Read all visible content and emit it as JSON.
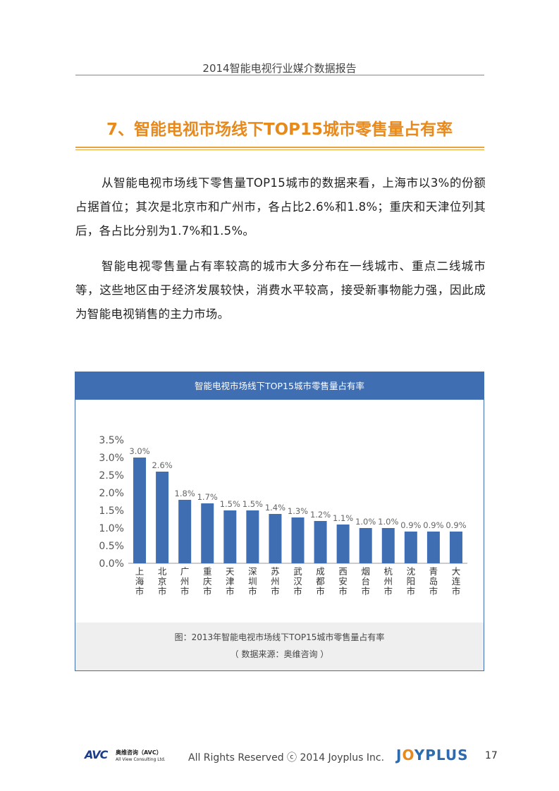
{
  "header": {
    "title": "2014智能电视行业媒介数据报告"
  },
  "section": {
    "title": "7、智能电视市场线下TOP15城市零售量占有率"
  },
  "paragraphs": {
    "p1": "从智能电视市场线下零售量TOP15城市的数据来看，上海市以3%的份额占据首位；其次是北京市和广州市，各占比2.6%和1.8%；重庆和天津位列其后，各占比分别为1.7%和1.5%。",
    "p2": "智能电视零售量占有率较高的城市大多分布在一线城市、重点二线城市等，这些地区由于经济发展较快，消费水平较高，接受新事物能力强，因此成为智能电视销售的主力市场。"
  },
  "figure": {
    "caption": "图：2013年智能电视市场线下TOP15城市零售量占有率",
    "source": "（ 数据来源：奥维咨询 ）"
  },
  "chart_data": {
    "type": "bar",
    "title": "智能电视市场线下TOP15城市零售量占有率",
    "categories": [
      "上海市",
      "北京市",
      "广州市",
      "重庆市",
      "天津市",
      "深圳市",
      "苏州市",
      "武汉市",
      "成都市",
      "西安市",
      "烟台市",
      "杭州市",
      "沈阳市",
      "青岛市",
      "大连市"
    ],
    "values": [
      3.0,
      2.6,
      1.8,
      1.7,
      1.5,
      1.5,
      1.4,
      1.3,
      1.2,
      1.1,
      1.0,
      1.0,
      0.9,
      0.9,
      0.9
    ],
    "value_labels": [
      "3.0%",
      "2.6%",
      "1.8%",
      "1.7%",
      "1.5%",
      "1.5%",
      "1.4%",
      "1.3%",
      "1.2%",
      "1.1%",
      "1.0%",
      "1.0%",
      "0.9%",
      "0.9%",
      "0.9%"
    ],
    "yticks": [
      "0.0%",
      "0.5%",
      "1.0%",
      "1.5%",
      "2.0%",
      "2.5%",
      "3.0%",
      "3.5%"
    ],
    "ylim": [
      0,
      3.5
    ],
    "grid": false,
    "bar_color": "#3f6eb3"
  },
  "footer": {
    "avc_logo": "AVC",
    "avc_cn": "奥维咨询（AVC）",
    "avc_en": "All View Consulting Ltd.",
    "copyright": "All Rights Reserved ⓒ 2014 Joyplus Inc.",
    "brand_j": "J",
    "brand_o": "O",
    "brand_rest": "YPLUS",
    "page_number": "17"
  }
}
